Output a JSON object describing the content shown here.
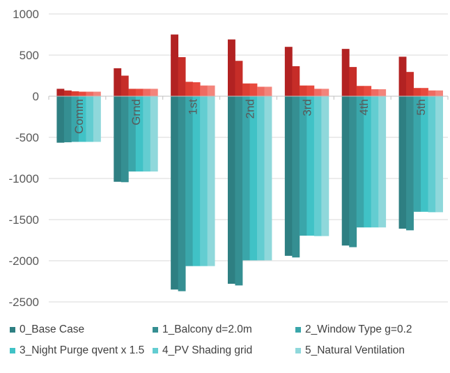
{
  "chart_data": {
    "type": "bar",
    "title": "",
    "xlabel": "",
    "ylabel": "",
    "ylim": [
      -2500,
      1000
    ],
    "yticks": [
      1000,
      500,
      0,
      -500,
      -1000,
      -1500,
      -2000,
      -2500
    ],
    "categories": [
      "Comm",
      "Grnd",
      "1st",
      "2nd",
      "3rd",
      "4th",
      "5th"
    ],
    "positive_series": [
      {
        "name": "0_Base Case",
        "color": "#b22222",
        "values": [
          90,
          340,
          750,
          690,
          600,
          575,
          480
        ]
      },
      {
        "name": "1_Balcony d=2.0m",
        "color": "#c62d28",
        "values": [
          70,
          250,
          475,
          430,
          365,
          355,
          295
        ]
      },
      {
        "name": "2_Window Type g=0.2",
        "color": "#dd3e33",
        "values": [
          60,
          90,
          175,
          155,
          130,
          125,
          100
        ]
      },
      {
        "name": "3_Night Purge qvent x 1.5",
        "color": "#e84a3e",
        "values": [
          55,
          90,
          170,
          155,
          130,
          125,
          100
        ]
      },
      {
        "name": "4_PV Shading grid",
        "color": "#ef6b62",
        "values": [
          55,
          90,
          130,
          115,
          90,
          85,
          70
        ]
      },
      {
        "name": "5_Natural Ventilation",
        "color": "#f3847b",
        "values": [
          55,
          90,
          130,
          115,
          90,
          85,
          70
        ]
      }
    ],
    "negative_series": [
      {
        "name": "0_Base Case",
        "color": "#2e7f82",
        "values": [
          -565,
          -1040,
          -2350,
          -2280,
          -1940,
          -1815,
          -1610
        ]
      },
      {
        "name": "1_Balcony d=2.0m",
        "color": "#358f92",
        "values": [
          -560,
          -1045,
          -2370,
          -2300,
          -1960,
          -1835,
          -1630
        ]
      },
      {
        "name": "2_Window Type g=0.2",
        "color": "#3aa6aa",
        "values": [
          -555,
          -915,
          -2065,
          -1995,
          -1695,
          -1595,
          -1405
        ]
      },
      {
        "name": "3_Night Purge qvent x 1.5",
        "color": "#40c2c6",
        "values": [
          -555,
          -915,
          -2065,
          -1995,
          -1695,
          -1595,
          -1405
        ]
      },
      {
        "name": "4_PV Shading grid",
        "color": "#63cdd1",
        "values": [
          -555,
          -915,
          -2065,
          -1995,
          -1700,
          -1595,
          -1410
        ]
      },
      {
        "name": "5_Natural Ventilation",
        "color": "#8fd8db",
        "values": [
          -555,
          -915,
          -2065,
          -1995,
          -1700,
          -1595,
          -1410
        ]
      }
    ],
    "legend": {
      "position": "bottom",
      "items": [
        {
          "label": "0_Base Case",
          "color": "#2e7f82"
        },
        {
          "label": "1_Balcony d=2.0m",
          "color": "#358f92"
        },
        {
          "label": "2_Window Type g=0.2",
          "color": "#3aa6aa"
        },
        {
          "label": "3_Night Purge qvent x 1.5",
          "color": "#40c2c6"
        },
        {
          "label": "4_PV Shading grid",
          "color": "#63cdd1"
        },
        {
          "label": "5_Natural Ventilation",
          "color": "#8fd8db"
        }
      ]
    }
  }
}
